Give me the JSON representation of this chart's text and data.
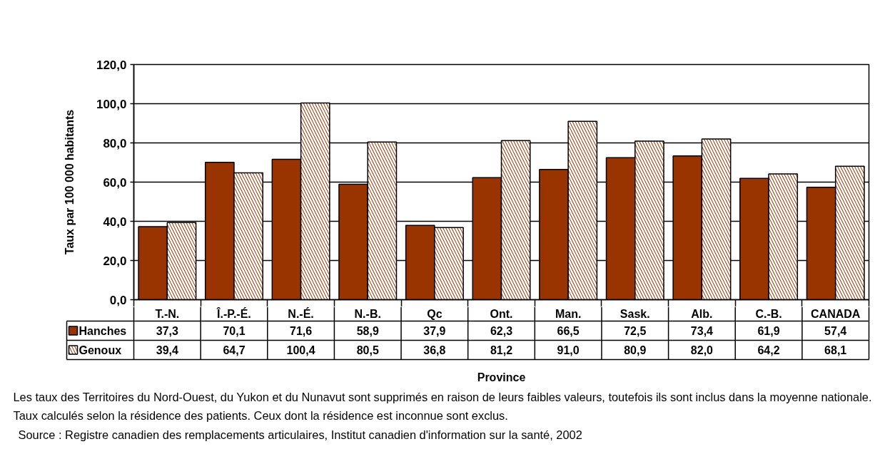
{
  "chart_data": {
    "type": "bar",
    "categories": [
      "T.-N.",
      "Î.-P.-É.",
      "N.-É.",
      "N.-B.",
      "Qc",
      "Ont.",
      "Man.",
      "Sask.",
      "Alb.",
      "C.-B.",
      "CANADA"
    ],
    "series": [
      {
        "name": "Hanches",
        "color": "#993300",
        "values": [
          37.3,
          70.1,
          71.6,
          58.9,
          37.9,
          62.3,
          66.5,
          72.5,
          73.4,
          61.9,
          57.4
        ],
        "value_labels": [
          "37,3",
          "70,1",
          "71,6",
          "58,9",
          "37,9",
          "62,3",
          "66,5",
          "72,5",
          "73,4",
          "61,9",
          "57,4"
        ]
      },
      {
        "name": "Genoux",
        "color": "#993300",
        "values": [
          39.4,
          64.7,
          100.4,
          80.5,
          36.8,
          81.2,
          91.0,
          80.9,
          82.0,
          64.2,
          68.1
        ],
        "value_labels": [
          "39,4",
          "64,7",
          "100,4",
          "80,5",
          "36,8",
          "81,2",
          "91,0",
          "80,9",
          "82,0",
          "64,2",
          "68,1"
        ]
      }
    ],
    "xlabel": "Province",
    "ylabel": "Taux par 100 000 habitants",
    "ylim": [
      0,
      120
    ],
    "yticks": [
      {
        "value": 0,
        "label": "0,0"
      },
      {
        "value": 20,
        "label": "20,0"
      },
      {
        "value": 40,
        "label": "40,0"
      },
      {
        "value": 60,
        "label": "60,0"
      },
      {
        "value": 80,
        "label": "80,0"
      },
      {
        "value": 100,
        "label": "100,0"
      },
      {
        "value": 120,
        "label": "120,0"
      }
    ],
    "grid": "y",
    "legend": "bottom left",
    "annotations": [
      "Les taux des Territoires du Nord-Ouest, du Yukon et du Nunavut sont supprimés en raison de leurs faibles valeurs, toutefois ils sont inclus dans la moyenne nationale.",
      "Taux calculés selon la résidence des patients. Ceux dont la résidence est inconnue sont exclus.",
      "Source : Registre canadien des remplacements articulaires, Institut canadien d'information sur la santé, 2002"
    ]
  }
}
